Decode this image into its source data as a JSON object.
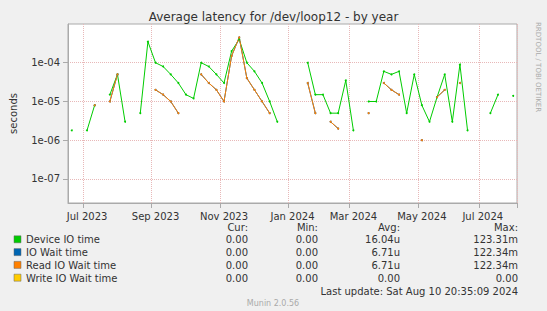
{
  "chart_data": {
    "type": "line",
    "title": "Average latency for /dev/loop12 - by year",
    "y_label": "seconds",
    "log": "y",
    "grid": true,
    "categories": [
      null,
      null,
      "Jul 2023",
      null,
      null,
      null,
      null,
      null,
      null,
      null,
      null,
      "Sep 2023",
      null,
      null,
      null,
      null,
      null,
      null,
      null,
      null,
      "Nov 2023",
      null,
      null,
      null,
      null,
      null,
      null,
      null,
      null,
      "Jan 2024",
      null,
      null,
      null,
      null,
      null,
      null,
      null,
      "Mar 2024",
      null,
      null,
      null,
      null,
      null,
      null,
      null,
      null,
      "May 2024",
      null,
      null,
      null,
      null,
      null,
      null,
      null,
      "Jul 2024",
      null,
      null,
      null,
      null
    ],
    "ylim": [
      2.4e-08,
      0.001
    ],
    "yticks": [
      {
        "value": 1e-07,
        "label": "1e-07"
      },
      {
        "value": 1e-06,
        "label": "1e-06"
      },
      {
        "value": 1e-05,
        "label": "1e-05"
      },
      {
        "value": 0.0001,
        "label": "1e-04"
      }
    ],
    "stats_header": [
      "Cur:",
      "Min:",
      "Avg:",
      "Max:"
    ],
    "series": [
      {
        "name": "Device IO time",
        "color": "#00cc00",
        "stats": [
          "0.00",
          "0.00",
          "16.04u",
          "123.31m"
        ],
        "values": [
          1.8e-06,
          null,
          1.8e-06,
          8e-06,
          null,
          1.5e-05,
          5e-05,
          3e-06,
          null,
          5e-06,
          0.00035,
          0.0001,
          8e-05,
          5e-05,
          3e-05,
          1.5e-05,
          1.2e-05,
          0.0001,
          8e-05,
          5e-05,
          3e-05,
          0.0002,
          0.0004,
          0.0001,
          6e-05,
          3e-05,
          1e-05,
          3e-06,
          null,
          null,
          null,
          0.0001,
          1.5e-05,
          1.5e-05,
          5e-06,
          5e-06,
          3.5e-05,
          1.8e-06,
          null,
          1e-05,
          1e-05,
          6e-05,
          5e-05,
          6e-05,
          5e-06,
          5e-05,
          8e-06,
          3e-06,
          1.3e-05,
          5e-05,
          3e-06,
          9e-05,
          1.8e-06,
          null,
          null,
          5e-06,
          1.5e-05,
          null,
          1.4e-05
        ]
      },
      {
        "name": "IO Wait time",
        "color": "#0066b3",
        "stats": [
          "0.00",
          "0.00",
          "6.71u",
          "122.34m"
        ],
        "values": [
          null,
          null,
          null,
          8e-06,
          null,
          1e-05,
          5e-05,
          null,
          null,
          null,
          null,
          2e-05,
          1.5e-05,
          1e-05,
          5e-06,
          null,
          null,
          5e-05,
          3e-05,
          2e-05,
          1e-05,
          0.00015,
          0.00045,
          4e-05,
          2e-05,
          1e-05,
          5e-06,
          null,
          null,
          null,
          null,
          3e-05,
          5e-06,
          null,
          3e-06,
          2e-06,
          null,
          null,
          null,
          5e-06,
          null,
          3e-05,
          2e-05,
          1.5e-05,
          null,
          null,
          1e-06,
          null,
          1.3e-05,
          2e-05,
          null,
          3e-05,
          null,
          null,
          null,
          null,
          null,
          null,
          null
        ]
      },
      {
        "name": "Read IO Wait time",
        "color": "#ff8000",
        "stats": [
          "0.00",
          "0.00",
          "6.71u",
          "122.34m"
        ],
        "values": [
          null,
          null,
          null,
          8e-06,
          null,
          1e-05,
          5e-05,
          null,
          null,
          null,
          null,
          2e-05,
          1.5e-05,
          1e-05,
          5e-06,
          null,
          null,
          5e-05,
          3e-05,
          2e-05,
          1e-05,
          0.00015,
          0.00045,
          4e-05,
          2e-05,
          1e-05,
          5e-06,
          null,
          null,
          null,
          null,
          3e-05,
          5e-06,
          null,
          3e-06,
          2e-06,
          null,
          null,
          null,
          5e-06,
          null,
          3e-05,
          2e-05,
          1.5e-05,
          null,
          null,
          1e-06,
          null,
          1.3e-05,
          2e-05,
          null,
          3e-05,
          null,
          null,
          null,
          null,
          null,
          null,
          null
        ]
      },
      {
        "name": "Write IO Wait time",
        "color": "#ffcc00",
        "stats": [
          "0.00",
          "0.00",
          "0.00",
          "0.00"
        ],
        "values": [
          null,
          null,
          null,
          null,
          null,
          null,
          null,
          null,
          null,
          null,
          null,
          null,
          null,
          null,
          null,
          null,
          null,
          null,
          null,
          null,
          null,
          null,
          null,
          null,
          null,
          null,
          null,
          null,
          null,
          null,
          null,
          null,
          null,
          null,
          null,
          null,
          null,
          null,
          null,
          null,
          null,
          null,
          null,
          null,
          null,
          null,
          null,
          null,
          null,
          null,
          null,
          null,
          null,
          null,
          null,
          null,
          null,
          null,
          null
        ]
      }
    ],
    "footer": "Last update: Sat Aug 10 20:35:09 2024",
    "credit": "Munin 2.0.56",
    "side_text": "RRDTOOL / TOBI OETIKER"
  }
}
